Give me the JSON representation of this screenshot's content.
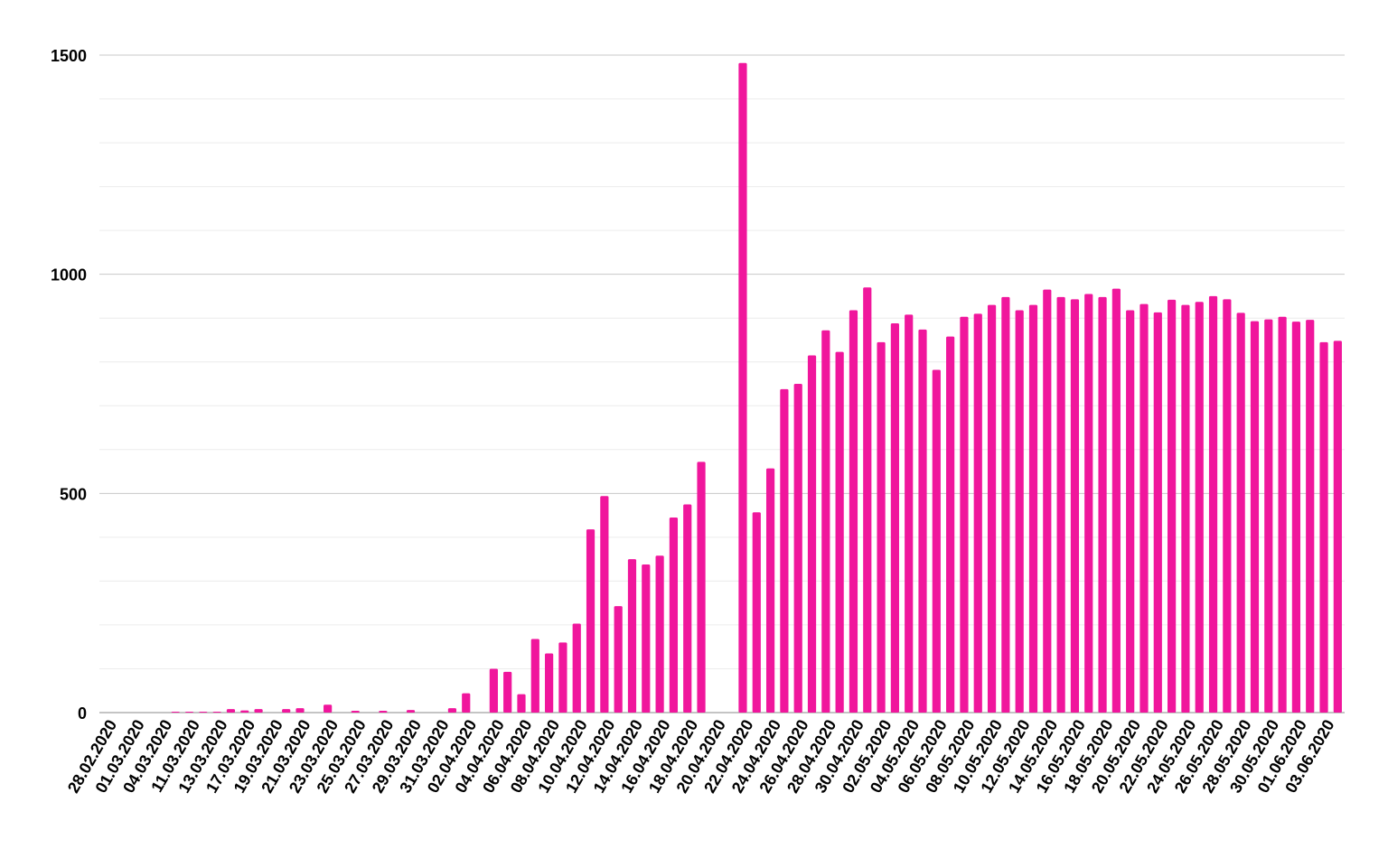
{
  "chart_data": {
    "type": "bar",
    "categories": [
      "28.02.2020",
      null,
      "01.03.2020",
      null,
      "04.03.2020",
      null,
      "11.03.2020",
      null,
      "13.03.2020",
      null,
      "17.03.2020",
      null,
      "19.03.2020",
      null,
      "21.03.2020",
      null,
      "23.03.2020",
      null,
      "25.03.2020",
      null,
      "27.03.2020",
      null,
      "29.03.2020",
      null,
      "31.03.2020",
      null,
      "02.04.2020",
      null,
      "04.04.2020",
      null,
      "06.04.2020",
      null,
      "08.04.2020",
      null,
      "10.04.2020",
      null,
      "12.04.2020",
      null,
      "14.04.2020",
      null,
      "16.04.2020",
      null,
      "18.04.2020",
      null,
      "20.04.2020",
      null,
      "22.04.2020",
      null,
      "24.04.2020",
      null,
      "26.04.2020",
      null,
      "28.04.2020",
      null,
      "30.04.2020",
      null,
      "02.05.2020",
      null,
      "04.05.2020",
      null,
      "06.05.2020",
      null,
      "08.05.2020",
      null,
      "10.05.2020",
      null,
      "12.05.2020",
      null,
      "14.05.2020",
      null,
      "16.05.2020",
      null,
      "18.05.2020",
      null,
      "20.05.2020",
      null,
      "22.05.2020",
      null,
      "24.05.2020",
      null,
      "26.05.2020",
      null,
      "28.05.2020",
      null,
      "30.05.2020",
      null,
      "01.06.2020",
      null,
      "03.06.2020",
      null
    ],
    "values": [
      0,
      0,
      0,
      0,
      0,
      2,
      2,
      2,
      2,
      8,
      5,
      8,
      0,
      8,
      10,
      0,
      18,
      0,
      4,
      0,
      4,
      0,
      6,
      0,
      0,
      10,
      44,
      0,
      100,
      93,
      42,
      168,
      135,
      160,
      203,
      418,
      494,
      243,
      350,
      338,
      358,
      445,
      475,
      572,
      0,
      0,
      1482,
      457,
      557,
      738,
      750,
      815,
      872,
      823,
      918,
      970,
      845,
      888,
      908,
      874,
      782,
      858,
      903,
      910,
      930,
      948,
      918,
      930,
      965,
      948,
      943,
      955,
      948,
      967,
      918,
      932,
      913,
      942,
      930,
      937,
      950,
      943,
      912,
      893,
      897,
      903,
      892,
      896,
      845,
      848
    ],
    "color": "#f0169c",
    "ylim": [
      0,
      1500
    ],
    "yticks": [
      0,
      500,
      1000,
      1500
    ],
    "yminor": [
      100,
      200,
      300,
      400,
      600,
      700,
      800,
      900,
      1100,
      1200,
      1300,
      1400
    ],
    "grid": true
  }
}
